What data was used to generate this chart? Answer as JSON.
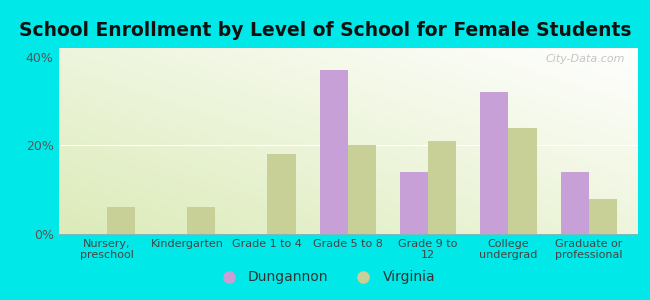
{
  "title": "School Enrollment by Level of School for Female Students",
  "categories": [
    "Nursery,\npreschool",
    "Kindergarten",
    "Grade 1 to 4",
    "Grade 5 to 8",
    "Grade 9 to\n12",
    "College\nundergrad",
    "Graduate or\nprofessional"
  ],
  "dungannon": [
    0,
    0,
    0,
    37,
    14,
    32,
    14
  ],
  "virginia": [
    6,
    6,
    18,
    20,
    21,
    24,
    8
  ],
  "dungannon_color": "#c8a0d8",
  "virginia_color": "#c8d098",
  "background_color": "#00e8e8",
  "ylim": [
    0,
    42
  ],
  "yticks": [
    0,
    20,
    40
  ],
  "ytick_labels": [
    "0%",
    "20%",
    "40%"
  ],
  "title_fontsize": 14,
  "legend_labels": [
    "Dungannon",
    "Virginia"
  ],
  "bar_width": 0.35,
  "watermark": "City-Data.com"
}
